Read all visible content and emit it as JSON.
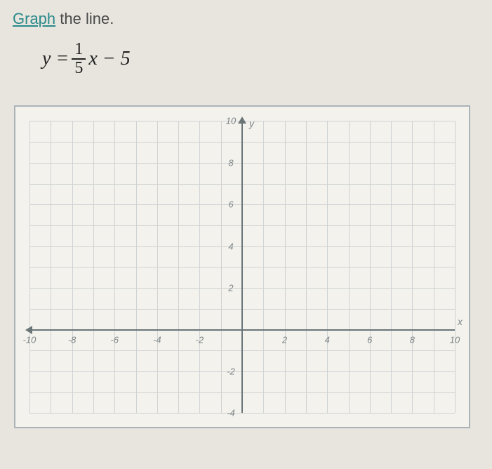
{
  "prompt": {
    "link_text": "Graph",
    "rest_text": " the line."
  },
  "equation": {
    "lhs": "y =",
    "numerator": "1",
    "denominator": "5",
    "rhs": "x − 5"
  },
  "chart": {
    "type": "cartesian-grid",
    "background_color": "#f4f2ed",
    "border_color": "#aab4b8",
    "grid_color": "#cfd3d3",
    "axis_color": "#6a7578",
    "label_color": "#7d8688",
    "label_fontsize": 13,
    "x": {
      "min": -10,
      "max": 10,
      "grid_step": 1,
      "tick_step": 2,
      "ticks": [
        -10,
        -8,
        -6,
        -4,
        -2,
        2,
        4,
        6,
        8,
        10
      ],
      "label": "x"
    },
    "y": {
      "min": -4,
      "max": 10,
      "grid_step": 1,
      "tick_step": 2,
      "ticks": [
        -4,
        -2,
        2,
        4,
        6,
        8,
        10
      ],
      "label": "y"
    }
  }
}
